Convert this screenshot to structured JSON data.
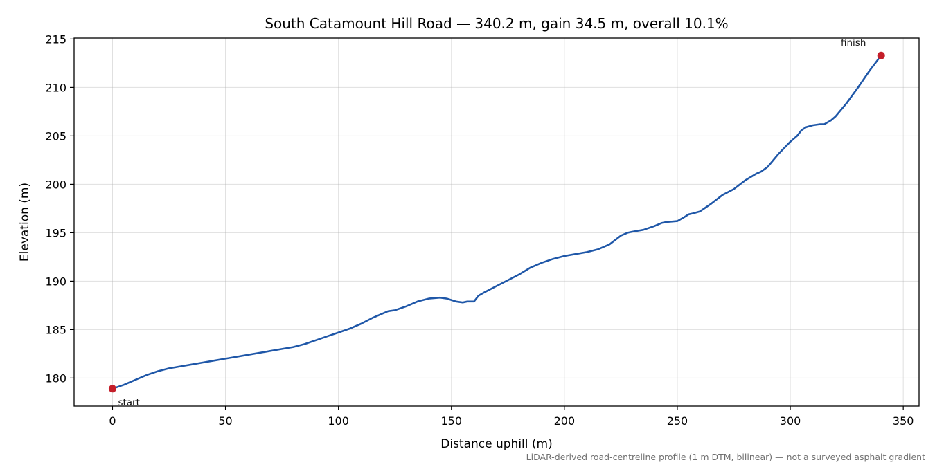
{
  "chart_data": {
    "type": "line",
    "title": "South Catamount Hill Road — 340.2 m, gain 34.5 m, overall 10.1%",
    "xlabel": "Distance uphill (m)",
    "ylabel": "Elevation (m)",
    "xlim": [
      -17,
      357
    ],
    "ylim": [
      177.1,
      215.1
    ],
    "xticks": [
      0,
      50,
      100,
      150,
      200,
      250,
      300,
      350
    ],
    "yticks": [
      180,
      185,
      190,
      195,
      200,
      205,
      210,
      215
    ],
    "grid": true,
    "line_color": "#1f57a8",
    "marker_color": "#c41e2a",
    "series": [
      {
        "x": [
          0,
          5,
          10,
          15,
          20,
          25,
          30,
          35,
          40,
          45,
          50,
          55,
          60,
          65,
          70,
          75,
          80,
          85,
          90,
          95,
          100,
          105,
          110,
          115,
          120,
          122,
          125,
          130,
          135,
          140,
          145,
          148,
          152,
          155,
          157,
          160,
          162,
          165,
          170,
          175,
          180,
          185,
          190,
          195,
          200,
          205,
          210,
          215,
          220,
          225,
          228,
          230,
          235,
          240,
          243,
          245,
          250,
          253,
          255,
          257,
          260,
          265,
          270,
          275,
          280,
          285,
          287,
          290,
          295,
          300,
          303,
          305,
          307,
          310,
          313,
          315,
          318,
          320,
          325,
          330,
          335,
          340.2
        ],
        "y": [
          178.9,
          179.3,
          179.8,
          180.3,
          180.7,
          181.0,
          181.2,
          181.4,
          181.6,
          181.8,
          182.0,
          182.2,
          182.4,
          182.6,
          182.8,
          183.0,
          183.2,
          183.5,
          183.9,
          184.3,
          184.7,
          185.1,
          185.6,
          186.2,
          186.7,
          186.9,
          187.0,
          187.4,
          187.9,
          188.2,
          188.3,
          188.2,
          187.9,
          187.8,
          187.9,
          187.9,
          188.5,
          188.9,
          189.5,
          190.1,
          190.7,
          191.4,
          191.9,
          192.3,
          192.6,
          192.8,
          193.0,
          193.3,
          193.8,
          194.7,
          195.0,
          195.1,
          195.3,
          195.7,
          196.0,
          196.1,
          196.2,
          196.6,
          196.9,
          197.0,
          197.2,
          198.0,
          198.9,
          199.5,
          200.4,
          201.1,
          201.3,
          201.8,
          203.2,
          204.4,
          205.0,
          205.6,
          205.9,
          206.1,
          206.2,
          206.2,
          206.6,
          207.0,
          208.4,
          210.0,
          211.7,
          213.3
        ]
      }
    ],
    "annotations": [
      {
        "text": "start",
        "x": 0,
        "y": 178.9
      },
      {
        "text": "finish",
        "x": 340.2,
        "y": 213.3
      }
    ],
    "footnote": "LiDAR-derived road-centreline profile (1 m DTM, bilinear) — not a surveyed asphalt gradient"
  }
}
